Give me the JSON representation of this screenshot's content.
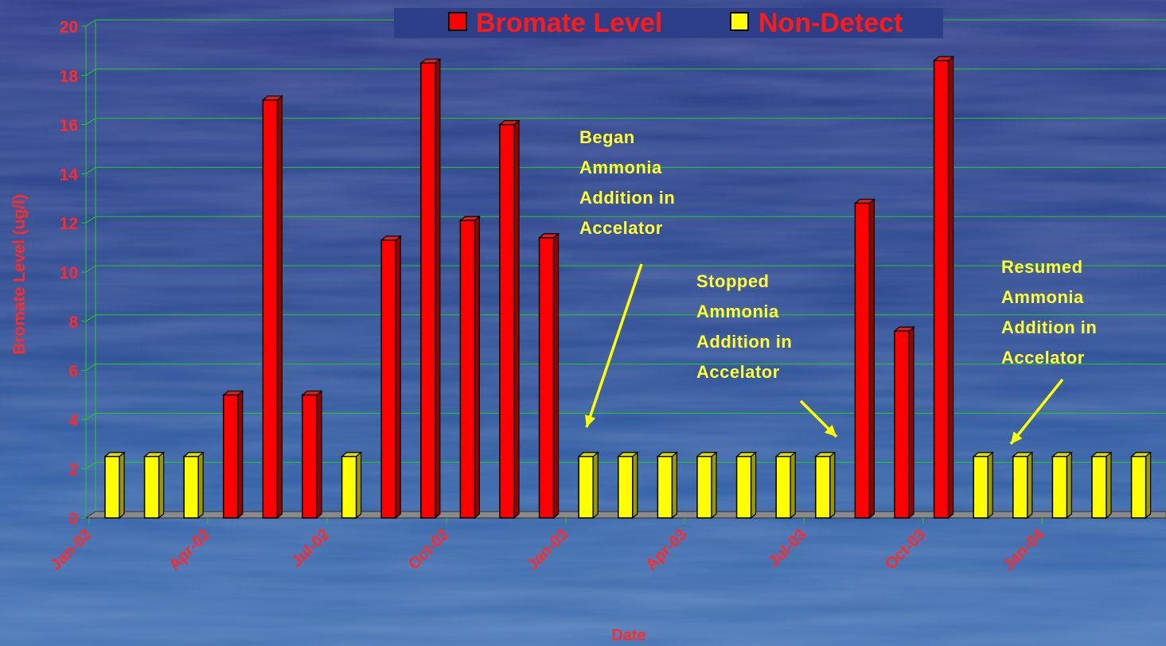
{
  "chart_data": {
    "type": "bar",
    "title": "",
    "xlabel": "Date",
    "ylabel": "Bromate Level (ug/l)",
    "ylim": [
      0,
      20
    ],
    "yticks": [
      0,
      2,
      4,
      6,
      8,
      10,
      12,
      14,
      16,
      18,
      20
    ],
    "grid": true,
    "legend_position": "top",
    "x_tick_labels": [
      "Jan-02",
      "Apr-02",
      "Jul-02",
      "Oct-02",
      "Jan-03",
      "Apr-03",
      "Jul-03",
      "Oct-03",
      "Jan-04"
    ],
    "series": [
      {
        "name": "Bromate Level",
        "color": "#ff0000"
      },
      {
        "name": "Non-Detect",
        "color": "#ffff00"
      }
    ],
    "bars": [
      {
        "series": "Non-Detect",
        "value": 2.5
      },
      {
        "series": "Non-Detect",
        "value": 2.5
      },
      {
        "series": "Non-Detect",
        "value": 2.5
      },
      {
        "series": "Bromate Level",
        "value": 5
      },
      {
        "series": "Bromate Level",
        "value": 17
      },
      {
        "series": "Bromate Level",
        "value": 5
      },
      {
        "series": "Non-Detect",
        "value": 2.5
      },
      {
        "series": "Bromate Level",
        "value": 11.3
      },
      {
        "series": "Bromate Level",
        "value": 18.5
      },
      {
        "series": "Bromate Level",
        "value": 12.1
      },
      {
        "series": "Bromate Level",
        "value": 16
      },
      {
        "series": "Bromate Level",
        "value": 11.4
      },
      {
        "series": "Non-Detect",
        "value": 2.5
      },
      {
        "series": "Non-Detect",
        "value": 2.5
      },
      {
        "series": "Non-Detect",
        "value": 2.5
      },
      {
        "series": "Non-Detect",
        "value": 2.5
      },
      {
        "series": "Non-Detect",
        "value": 2.5
      },
      {
        "series": "Non-Detect",
        "value": 2.5
      },
      {
        "series": "Non-Detect",
        "value": 2.5
      },
      {
        "series": "Bromate Level",
        "value": 12.8
      },
      {
        "series": "Bromate Level",
        "value": 7.6
      },
      {
        "series": "Bromate Level",
        "value": 18.6
      },
      {
        "series": "Non-Detect",
        "value": 2.5
      },
      {
        "series": "Non-Detect",
        "value": 2.5
      },
      {
        "series": "Non-Detect",
        "value": 2.5
      },
      {
        "series": "Non-Detect",
        "value": 2.5
      },
      {
        "series": "Non-Detect",
        "value": 2.5
      }
    ],
    "annotations": [
      {
        "lines": [
          "Began",
          "Ammonia",
          "Addition in",
          "Accelator"
        ]
      },
      {
        "lines": [
          "Stopped",
          "Ammonia",
          "Addition in",
          "Accelator"
        ]
      },
      {
        "lines": [
          "Resumed",
          "Ammonia",
          "Addition in",
          "Accelator"
        ]
      }
    ]
  }
}
